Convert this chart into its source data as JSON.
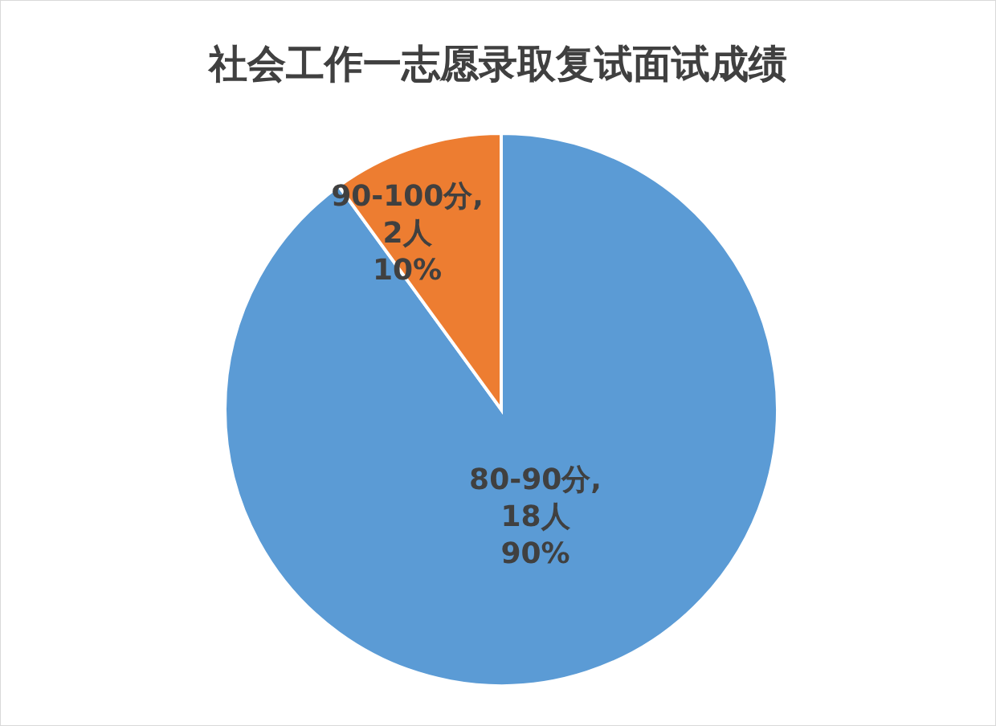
{
  "chart_data": {
    "type": "pie",
    "title": "社会工作一志愿录取复试面试成绩",
    "categories": [
      "80-90分",
      "90-100分"
    ],
    "values": [
      18,
      2
    ],
    "colors": [
      "#5b9bd5",
      "#ed7d31"
    ],
    "value_labels": [
      ",\n18人\n90%",
      ",\n2人\n10%"
    ]
  }
}
